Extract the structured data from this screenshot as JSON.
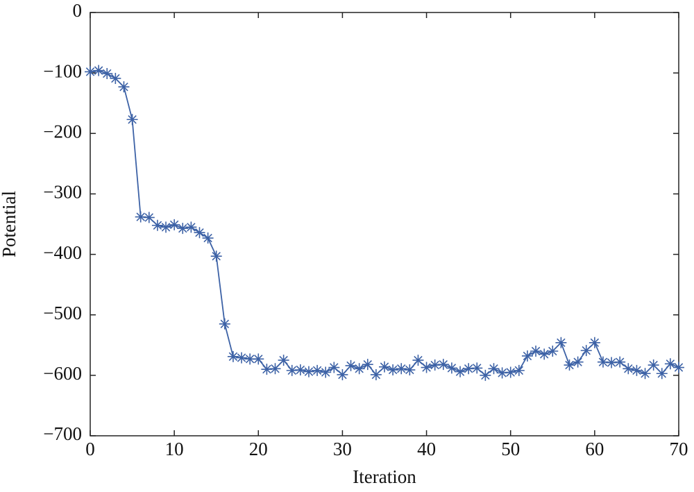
{
  "chart_data": {
    "type": "line",
    "xlabel": "Iteration",
    "ylabel": "Potential",
    "x": [
      0,
      1,
      2,
      3,
      4,
      5,
      6,
      7,
      8,
      9,
      10,
      11,
      12,
      13,
      14,
      15,
      16,
      17,
      18,
      19,
      20,
      21,
      22,
      23,
      24,
      25,
      26,
      27,
      28,
      29,
      30,
      31,
      32,
      33,
      34,
      35,
      36,
      37,
      38,
      39,
      40,
      41,
      42,
      43,
      44,
      45,
      46,
      47,
      48,
      49,
      50,
      51,
      52,
      53,
      54,
      55,
      56,
      57,
      58,
      59,
      60,
      61,
      62,
      63,
      64,
      65,
      66,
      67,
      68,
      69,
      70
    ],
    "series": [
      {
        "color": "#3d62a6",
        "marker": "asterisk",
        "values": [
          -98,
          -96,
          -101,
          -109,
          -123,
          -177,
          -338,
          -339,
          -352,
          -355,
          -351,
          -357,
          -355,
          -364,
          -373,
          -403,
          -515,
          -569,
          -571,
          -573,
          -573,
          -590,
          -589,
          -575,
          -592,
          -591,
          -594,
          -592,
          -595,
          -587,
          -599,
          -584,
          -589,
          -582,
          -599,
          -586,
          -591,
          -589,
          -591,
          -575,
          -587,
          -583,
          -582,
          -588,
          -594,
          -589,
          -588,
          -600,
          -589,
          -596,
          -595,
          -592,
          -568,
          -560,
          -565,
          -560,
          -546,
          -583,
          -578,
          -559,
          -546,
          -578,
          -579,
          -578,
          -589,
          -592,
          -597,
          -583,
          -597,
          -581,
          -587
        ]
      }
    ],
    "xlim": [
      0,
      70
    ],
    "xticks": [
      0,
      10,
      20,
      30,
      40,
      50,
      60,
      70
    ],
    "ylim": [
      -700,
      0
    ],
    "yticks": [
      {
        "value": -700,
        "label": "−700"
      },
      {
        "value": -600,
        "label": "−600"
      },
      {
        "value": -500,
        "label": "−500"
      },
      {
        "value": -400,
        "label": "−400"
      },
      {
        "value": -300,
        "label": "−300"
      },
      {
        "value": -200,
        "label": "−200"
      },
      {
        "value": -100,
        "label": "−100"
      },
      0
    ]
  }
}
